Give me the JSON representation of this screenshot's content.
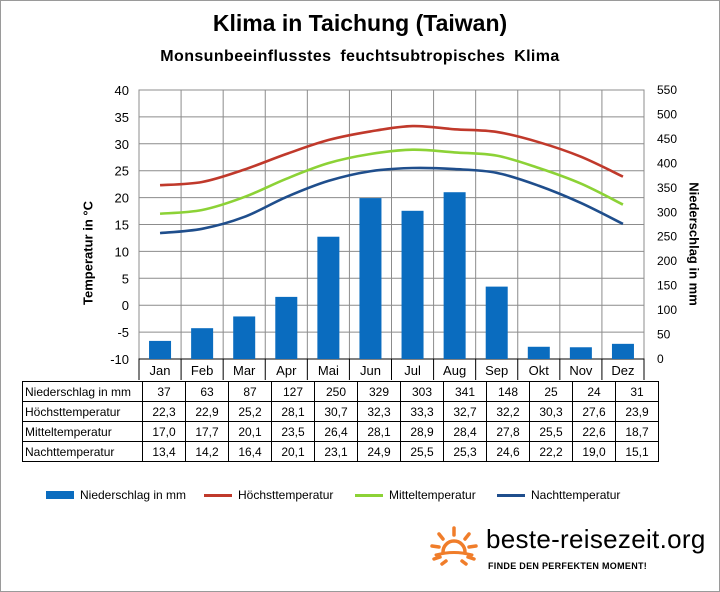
{
  "title": "Klima in Taichung (Taiwan)",
  "subtitle": "Monsunbeeinflusstes feuchtsubtropisches Klima",
  "chart_data": {
    "type": "bar+line",
    "title": "Klima in Taichung (Taiwan)",
    "subtitle": "Monsunbeeinflusstes feuchtsubtropisches Klima",
    "categories": [
      "Jan",
      "Feb",
      "Mar",
      "Apr",
      "Mai",
      "Jun",
      "Jul",
      "Aug",
      "Sep",
      "Okt",
      "Nov",
      "Dez"
    ],
    "ylabel_left": "Temperatur in °C",
    "ylabel_right": "Niederschlag in mm",
    "ylim_left": [
      -10,
      40
    ],
    "yticks_left": [
      "40",
      "35",
      "30",
      "25",
      "20",
      "15",
      "10",
      "5",
      "0",
      "-5",
      "-10"
    ],
    "ylim_right": [
      0,
      550
    ],
    "yticks_right": [
      "550",
      "500",
      "450",
      "400",
      "350",
      "300",
      "250",
      "200",
      "150",
      "100",
      "50",
      "0"
    ],
    "grid": true,
    "bar_series": {
      "name": "Niederschlag in mm",
      "color": "#0a6cbf",
      "values": [
        37,
        63,
        87,
        127,
        250,
        329,
        303,
        341,
        148,
        25,
        24,
        31
      ]
    },
    "line_series": [
      {
        "name": "Höchsttemperatur",
        "color": "#c0392b",
        "values": [
          22.3,
          22.9,
          25.2,
          28.1,
          30.7,
          32.3,
          33.3,
          32.7,
          32.2,
          30.3,
          27.6,
          23.9
        ]
      },
      {
        "name": "Mitteltemperatur",
        "color": "#8cd236",
        "values": [
          17.0,
          17.7,
          20.1,
          23.5,
          26.4,
          28.1,
          28.9,
          28.4,
          27.8,
          25.5,
          22.6,
          18.7
        ]
      },
      {
        "name": "Nachttemperatur",
        "color": "#1f4e8c",
        "values": [
          13.4,
          14.2,
          16.4,
          20.1,
          23.1,
          24.9,
          25.5,
          25.3,
          24.6,
          22.2,
          19.0,
          15.1
        ]
      }
    ],
    "table": {
      "rows": [
        {
          "label": "Niederschlag in mm",
          "cells": [
            "37",
            "63",
            "87",
            "127",
            "250",
            "329",
            "303",
            "341",
            "148",
            "25",
            "24",
            "31"
          ]
        },
        {
          "label": "Höchsttemperatur",
          "cells": [
            "22,3",
            "22,9",
            "25,2",
            "28,1",
            "30,7",
            "32,3",
            "33,3",
            "32,7",
            "32,2",
            "30,3",
            "27,6",
            "23,9"
          ]
        },
        {
          "label": "Mitteltemperatur",
          "cells": [
            "17,0",
            "17,7",
            "20,1",
            "23,5",
            "26,4",
            "28,1",
            "28,9",
            "28,4",
            "27,8",
            "25,5",
            "22,6",
            "18,7"
          ]
        },
        {
          "label": "Nachttemperatur",
          "cells": [
            "13,4",
            "14,2",
            "16,4",
            "20,1",
            "23,1",
            "24,9",
            "25,5",
            "25,3",
            "24,6",
            "22,2",
            "19,0",
            "15,1"
          ]
        }
      ]
    },
    "legend": [
      "Niederschlag in mm",
      "Höchsttemperatur",
      "Mitteltemperatur",
      "Nachttemperatur"
    ]
  },
  "brand": {
    "name": "beste-reisezeit.org",
    "tagline": "FINDE DEN PERFEKTEN MOMENT!",
    "sun_color": "#f07d2a"
  }
}
